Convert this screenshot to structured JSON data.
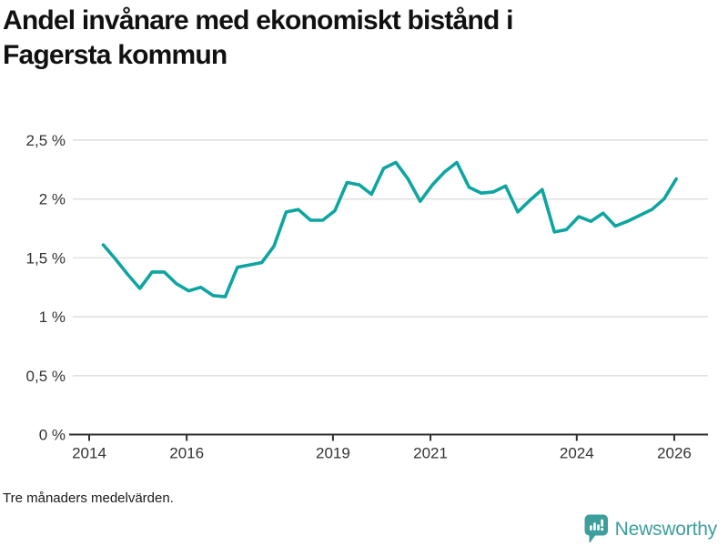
{
  "title_line1": "Andel invånare med ekonomiskt bistånd i",
  "title_line2": "Fagersta kommun",
  "footnote": "Tre månaders medelvärden.",
  "brand": {
    "name": "Newsworthy",
    "logo_icon": "bar-chart-speech-bubble",
    "color": "#3d9e9c"
  },
  "colors": {
    "line": "#0ea5a1",
    "grid": "#e1e1e1",
    "axis": "#2f2f2f",
    "tick_text": "#333333",
    "title": "#111111"
  },
  "chart_data": {
    "type": "line",
    "title": "Andel invånare med ekonomiskt bistånd i Fagersta kommun",
    "xlabel": "",
    "ylabel": "",
    "unit": "%",
    "ylim": [
      0,
      2.5
    ],
    "xlim_years": [
      2013.6,
      2026.7
    ],
    "grid": "horizontal",
    "legend": "none",
    "decimal_style": "comma",
    "yticks": [
      {
        "value": 0,
        "label": "0 %"
      },
      {
        "value": 0.5,
        "label": "0,5 %"
      },
      {
        "value": 1,
        "label": "1 %"
      },
      {
        "value": 1.5,
        "label": "1,5 %"
      },
      {
        "value": 2,
        "label": "2 %"
      },
      {
        "value": 2.5,
        "label": "2,5 %"
      }
    ],
    "xticks": [
      {
        "year": 2014,
        "label": "2014"
      },
      {
        "year": 2016,
        "label": "2016"
      },
      {
        "year": 2019,
        "label": "2019"
      },
      {
        "year": 2021,
        "label": "2021"
      },
      {
        "year": 2024,
        "label": "2024"
      },
      {
        "year": 2026,
        "label": "2026"
      }
    ],
    "series": [
      {
        "name": "Andel invånare med ekonomiskt bistånd, Fagersta kommun",
        "quarters": [
          "2014Q2",
          "2014Q3",
          "2014Q4",
          "2015Q1",
          "2015Q2",
          "2015Q3",
          "2015Q4",
          "2016Q1",
          "2016Q2",
          "2016Q3",
          "2016Q4",
          "2017Q1",
          "2017Q2",
          "2017Q3",
          "2017Q4",
          "2018Q1",
          "2018Q2",
          "2018Q3",
          "2018Q4",
          "2019Q1",
          "2019Q2",
          "2019Q3",
          "2019Q4",
          "2020Q1",
          "2020Q2",
          "2020Q3",
          "2020Q4",
          "2021Q1",
          "2021Q2",
          "2021Q3",
          "2021Q4",
          "2022Q1",
          "2022Q2",
          "2022Q3",
          "2022Q4",
          "2023Q1",
          "2023Q2",
          "2023Q3",
          "2023Q4",
          "2024Q1",
          "2024Q2",
          "2024Q3",
          "2024Q4",
          "2025Q1",
          "2025Q2",
          "2025Q3",
          "2025Q4",
          "2026Q1"
        ],
        "values": [
          1.61,
          1.49,
          1.36,
          1.24,
          1.38,
          1.38,
          1.28,
          1.22,
          1.25,
          1.18,
          1.17,
          1.42,
          1.44,
          1.46,
          1.6,
          1.89,
          1.91,
          1.82,
          1.82,
          1.9,
          2.14,
          2.12,
          2.04,
          2.26,
          2.31,
          2.17,
          1.98,
          2.12,
          2.23,
          2.31,
          2.1,
          2.05,
          2.06,
          2.11,
          1.89,
          1.99,
          2.08,
          1.72,
          1.74,
          1.85,
          1.81,
          1.88,
          1.77,
          1.81,
          1.86,
          1.91,
          2.0,
          2.17
        ]
      }
    ]
  }
}
